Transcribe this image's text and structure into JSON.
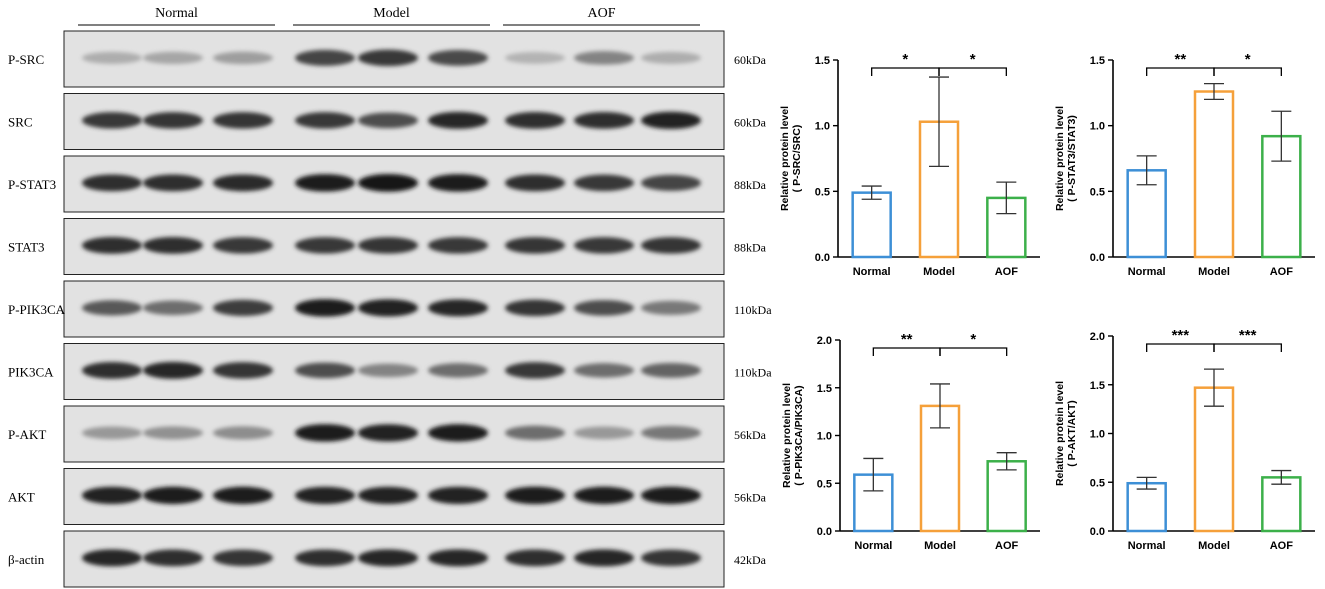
{
  "blot": {
    "groups": [
      "Normal",
      "Model",
      "AOF"
    ],
    "rows": [
      {
        "label": "P-SRC",
        "size": "60kDa",
        "intensity": [
          0.25,
          0.28,
          0.32,
          0.75,
          0.8,
          0.72,
          0.22,
          0.45,
          0.25
        ]
      },
      {
        "label": "SRC",
        "size": "60kDa",
        "intensity": [
          0.8,
          0.82,
          0.82,
          0.8,
          0.7,
          0.88,
          0.85,
          0.85,
          0.9
        ]
      },
      {
        "label": "P-STAT3",
        "size": "88kDa",
        "intensity": [
          0.85,
          0.85,
          0.86,
          0.95,
          0.97,
          0.95,
          0.85,
          0.8,
          0.75
        ]
      },
      {
        "label": "STAT3",
        "size": "88kDa",
        "intensity": [
          0.85,
          0.85,
          0.8,
          0.8,
          0.82,
          0.8,
          0.82,
          0.8,
          0.82
        ]
      },
      {
        "label": "P-PIK3CA",
        "size": "110kDa",
        "intensity": [
          0.65,
          0.55,
          0.78,
          0.95,
          0.9,
          0.88,
          0.82,
          0.7,
          0.5
        ]
      },
      {
        "label": "PIK3CA",
        "size": "110kDa",
        "intensity": [
          0.85,
          0.88,
          0.82,
          0.7,
          0.45,
          0.55,
          0.8,
          0.55,
          0.6
        ]
      },
      {
        "label": "P-AKT",
        "size": "56kDa",
        "intensity": [
          0.35,
          0.38,
          0.4,
          0.95,
          0.92,
          0.93,
          0.55,
          0.35,
          0.5
        ]
      },
      {
        "label": "AKT",
        "size": "56kDa",
        "intensity": [
          0.92,
          0.93,
          0.93,
          0.92,
          0.9,
          0.92,
          0.95,
          0.93,
          0.93
        ]
      },
      {
        "label": "β-actin",
        "size": "42kDa",
        "intensity": [
          0.88,
          0.85,
          0.82,
          0.85,
          0.88,
          0.88,
          0.85,
          0.88,
          0.82
        ]
      }
    ]
  },
  "colors": {
    "Normal": "#3d8fd6",
    "Model": "#f5a03a",
    "AOF": "#3cb04a"
  },
  "chart_data": [
    {
      "type": "bar",
      "categories": [
        "Normal",
        "Model",
        "AOF"
      ],
      "values": [
        0.49,
        1.03,
        0.45
      ],
      "errors": [
        0.05,
        0.34,
        0.12
      ],
      "ylabel": "Relative protein level",
      "ylabel2": "( P-SRC/SRC)",
      "ylim": [
        0,
        1.5
      ],
      "yticks": [
        "0.0",
        "0.5",
        "1.0",
        "1.5"
      ],
      "significance": [
        {
          "from": 0,
          "to": 1,
          "label": "*"
        },
        {
          "from": 1,
          "to": 2,
          "label": "*"
        }
      ]
    },
    {
      "type": "bar",
      "categories": [
        "Normal",
        "Model",
        "AOF"
      ],
      "values": [
        0.66,
        1.26,
        0.92
      ],
      "errors": [
        0.11,
        0.06,
        0.19
      ],
      "ylabel": "Relative protein level",
      "ylabel2": "( P-STAT3/STAT3)",
      "ylim": [
        0,
        1.5
      ],
      "yticks": [
        "0.0",
        "0.5",
        "1.0",
        "1.5"
      ],
      "significance": [
        {
          "from": 0,
          "to": 1,
          "label": "**"
        },
        {
          "from": 1,
          "to": 2,
          "label": "*"
        }
      ]
    },
    {
      "type": "bar",
      "categories": [
        "Normal",
        "Model",
        "AOF"
      ],
      "values": [
        0.59,
        1.31,
        0.73
      ],
      "errors": [
        0.17,
        0.23,
        0.09
      ],
      "ylabel": "Relative protein level",
      "ylabel2": "( P-PIK3CA/PIK3CA)",
      "ylim": [
        0,
        2.0
      ],
      "yticks": [
        "0.0",
        "0.5",
        "1.0",
        "1.5",
        "2.0"
      ],
      "significance": [
        {
          "from": 0,
          "to": 1,
          "label": "**"
        },
        {
          "from": 1,
          "to": 2,
          "label": "*"
        }
      ]
    },
    {
      "type": "bar",
      "categories": [
        "Normal",
        "Model",
        "AOF"
      ],
      "values": [
        0.49,
        1.47,
        0.55
      ],
      "errors": [
        0.06,
        0.19,
        0.07
      ],
      "ylabel": "Relative protein level",
      "ylabel2": "( P-AKT/AKT)",
      "ylim": [
        0,
        2.0
      ],
      "yticks": [
        "0.0",
        "0.5",
        "1.0",
        "1.5",
        "2.0"
      ],
      "significance": [
        {
          "from": 0,
          "to": 1,
          "label": "***"
        },
        {
          "from": 1,
          "to": 2,
          "label": "***"
        }
      ]
    }
  ]
}
